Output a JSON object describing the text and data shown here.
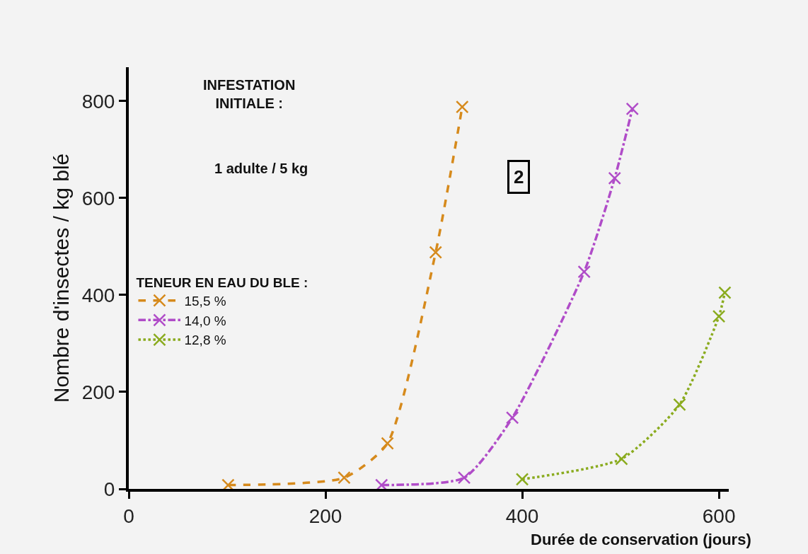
{
  "chart_data": {
    "type": "line",
    "xlabel": "Durée de conservation (jours)",
    "ylabel": "Nombre d'insectes / kg blé",
    "legend_title": "TENEUR EN EAU DU BLE :",
    "annotations": [
      "INFESTATION\nINITIALE :",
      "1 adulte / 5 kg",
      "2"
    ],
    "xlim": [
      0,
      610
    ],
    "xticks": [
      0,
      200,
      400,
      600
    ],
    "ylim": [
      0,
      870
    ],
    "yticks": [
      0,
      200,
      400,
      600,
      800
    ],
    "grid": false,
    "legend": "left",
    "marker": "cross",
    "series": [
      {
        "name": "15,5 %",
        "color": "#d68a1c",
        "line_style": "dashed",
        "x": [
          101,
          219,
          263,
          312,
          339
        ],
        "values": [
          8,
          23,
          94,
          488,
          788
        ]
      },
      {
        "name": "14,0 %",
        "color": "#b04cc8",
        "line_style": "dashdot",
        "x": [
          257,
          341,
          390,
          463,
          494,
          512
        ],
        "values": [
          8,
          23,
          147,
          448,
          641,
          784
        ]
      },
      {
        "name": "12,8 %",
        "color": "#8aab1e",
        "line_style": "dotted",
        "x": [
          400,
          501,
          560,
          600,
          606
        ],
        "values": [
          20,
          62,
          174,
          356,
          405
        ]
      }
    ]
  }
}
